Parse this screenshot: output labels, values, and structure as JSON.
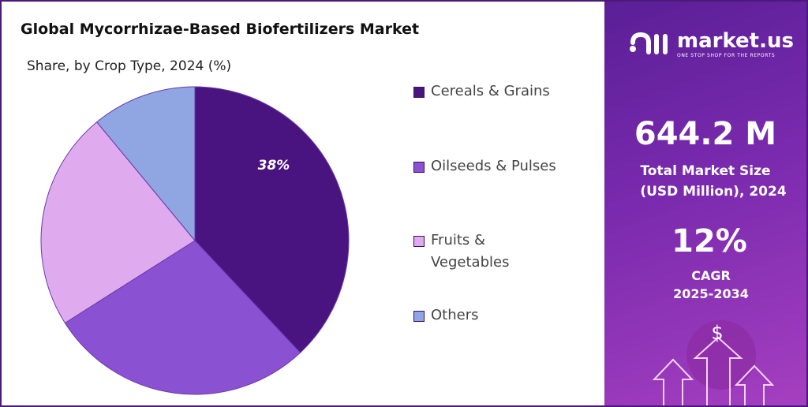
{
  "title": "Global Mycorrhizae-Based Biofertilizers Market",
  "subtitle": "Share, by Crop Type, 2024 (%)",
  "chart_data": {
    "type": "pie",
    "title": "Global Mycorrhizae-Based Biofertilizers Market",
    "subtitle": "Share, by Crop Type, 2024 (%)",
    "categories": [
      "Cereals & Grains",
      "Oilseeds & Pulses",
      "Fruits & Vegetables",
      "Others"
    ],
    "values": [
      38,
      28,
      23,
      11
    ],
    "colors": [
      "#4a1480",
      "#8a52d2",
      "#dfaaee",
      "#8fa6e2"
    ],
    "data_labels": [
      "38%",
      "",
      "",
      ""
    ],
    "legend_position": "right"
  },
  "legend": [
    {
      "line1": "Cereals & Grains",
      "line2": ""
    },
    {
      "line1": "Oilseeds & Pulses",
      "line2": ""
    },
    {
      "line1": "Fruits &",
      "line2": "Vegetables"
    },
    {
      "line1": "Others",
      "line2": ""
    }
  ],
  "panel": {
    "logo": "market.us",
    "tagline": "ONE STOP SHOP FOR THE REPORTS",
    "market_size": "644.2 M",
    "market_size_label1": "Total Market Size",
    "market_size_label2": "(USD Million), 2024",
    "cagr": "12%",
    "cagr_label1": "CAGR",
    "cagr_label2": "2025-2034",
    "dollar": "$"
  }
}
